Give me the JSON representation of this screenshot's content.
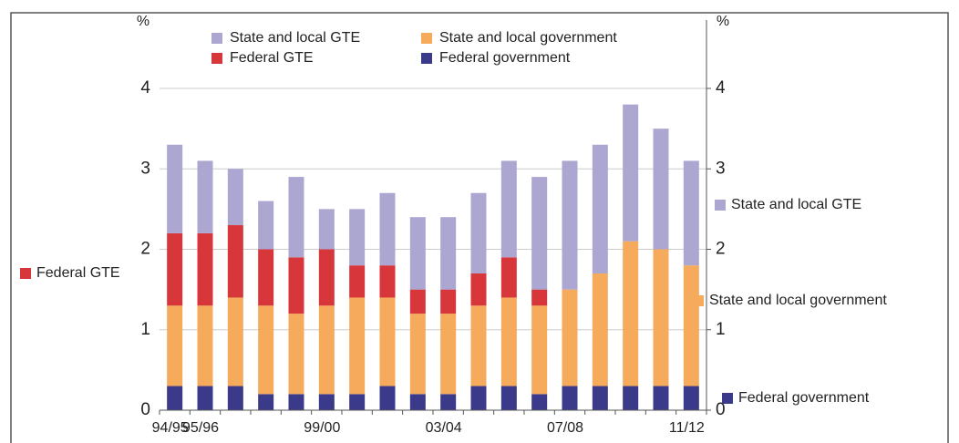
{
  "chart_data": {
    "type": "stacked_bar",
    "ylabel": "%",
    "y2label": "%",
    "categories": [
      "94/95",
      "95/96",
      null,
      null,
      null,
      "99/00",
      null,
      null,
      null,
      "03/04",
      null,
      null,
      null,
      "07/08",
      null,
      null,
      null,
      "11/12"
    ],
    "series": [
      {
        "name": "Federal government",
        "color": "#3b3a8a",
        "values": [
          0.3,
          0.3,
          0.3,
          0.2,
          0.2,
          0.2,
          0.2,
          0.3,
          0.2,
          0.2,
          0.3,
          0.3,
          0.2,
          0.3,
          0.3,
          0.3,
          0.3,
          0.3
        ]
      },
      {
        "name": "State and local government",
        "color": "#f5aa5c",
        "values": [
          1.0,
          1.0,
          1.1,
          1.1,
          1.0,
          1.1,
          1.2,
          1.1,
          1.0,
          1.0,
          1.0,
          1.1,
          1.1,
          1.2,
          1.4,
          1.8,
          1.7,
          1.5
        ]
      },
      {
        "name": "Federal GTE",
        "color": "#d7363a",
        "values": [
          0.9,
          0.9,
          0.9,
          0.7,
          0.7,
          0.7,
          0.4,
          0.4,
          0.3,
          0.3,
          0.4,
          0.5,
          0.2,
          0,
          0,
          0,
          0,
          0
        ]
      },
      {
        "name": "State and local GTE",
        "color": "#aba7d1",
        "values": [
          1.1,
          0.9,
          0.7,
          0.6,
          1.0,
          0.5,
          0.7,
          0.9,
          0.9,
          0.9,
          1.0,
          1.2,
          1.4,
          1.6,
          1.6,
          1.7,
          1.5,
          1.3
        ]
      }
    ],
    "ylim": [
      0,
      4.2
    ],
    "yticks": [
      0,
      1,
      2,
      3,
      4
    ],
    "y2lim": [
      0,
      4.2
    ],
    "y2ticks": [
      0,
      1,
      2,
      3,
      4
    ],
    "grid": true,
    "annotations": [
      {
        "text": "Federal GTE",
        "color": "#d7363a"
      },
      {
        "text": "State and local GTE",
        "color": "#aba7d1"
      },
      {
        "text": "State and local government",
        "color": "#f5aa5c"
      },
      {
        "text": "Federal government",
        "color": "#3b3a8a"
      }
    ]
  }
}
